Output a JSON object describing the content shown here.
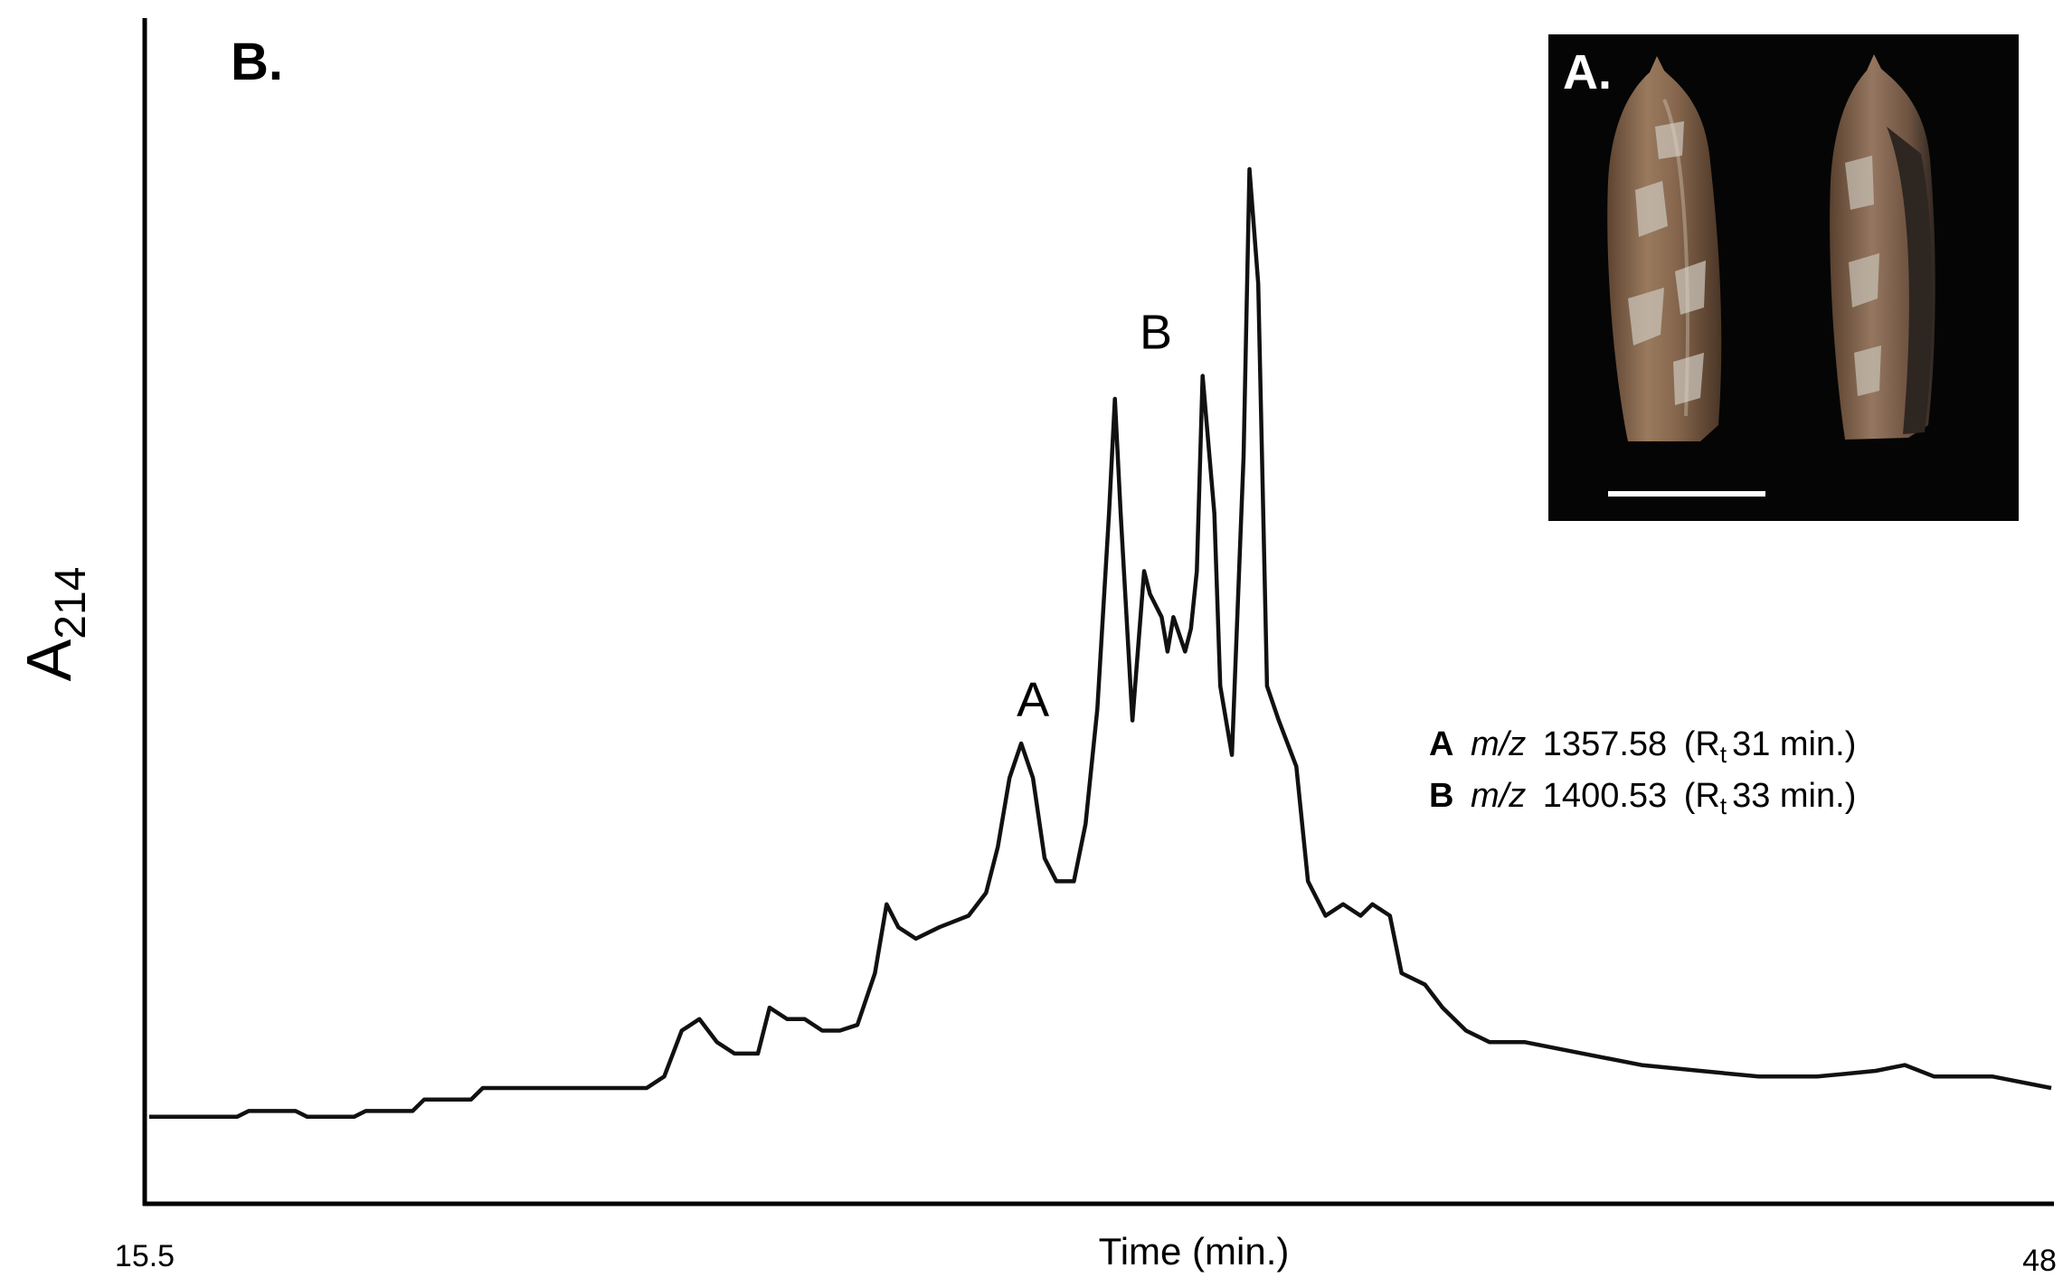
{
  "chart_data": {
    "type": "line",
    "panel_label": "B.",
    "inset_label": "A.",
    "xlabel": "Time (min.)",
    "ylabel": "A",
    "ylabel_subscript": "214",
    "xlim": [
      15.5,
      48
    ],
    "x_tick_labels": [
      "15.5",
      "48"
    ],
    "ylim": [
      0,
      100
    ],
    "grid": false,
    "peak_labels": [
      {
        "label": "A",
        "x": 30.6,
        "y": 40
      },
      {
        "label": "B",
        "x": 32.7,
        "y": 72
      }
    ],
    "annotations": [
      {
        "peak": "A",
        "mz_label": "m/z",
        "mz": "1357.58",
        "rt_prefix": "(R",
        "rt_sub": "t",
        "rt_text": "31 min.)"
      },
      {
        "peak": "B",
        "mz_label": "m/z",
        "mz": "1400.53",
        "rt_prefix": "(R",
        "rt_sub": "t",
        "rt_text": "33 min.)"
      }
    ],
    "series": [
      {
        "values": [
          [
            15.5,
            7.5
          ],
          [
            17.0,
            7.5
          ],
          [
            17.2,
            8
          ],
          [
            18.0,
            8
          ],
          [
            18.2,
            7.5
          ],
          [
            19.0,
            7.5
          ],
          [
            19.2,
            8
          ],
          [
            20.0,
            8
          ],
          [
            20.2,
            9
          ],
          [
            21.0,
            9
          ],
          [
            21.2,
            10
          ],
          [
            22.0,
            10
          ],
          [
            23.0,
            10
          ],
          [
            24.0,
            10
          ],
          [
            24.3,
            11
          ],
          [
            24.6,
            15
          ],
          [
            24.9,
            16
          ],
          [
            25.2,
            14
          ],
          [
            25.5,
            13
          ],
          [
            25.9,
            13
          ],
          [
            26.1,
            17
          ],
          [
            26.4,
            16
          ],
          [
            26.7,
            16
          ],
          [
            27.0,
            15
          ],
          [
            27.3,
            15
          ],
          [
            27.6,
            15.5
          ],
          [
            27.9,
            20
          ],
          [
            28.1,
            26
          ],
          [
            28.3,
            24
          ],
          [
            28.6,
            23
          ],
          [
            29.0,
            24
          ],
          [
            29.5,
            25
          ],
          [
            29.8,
            27
          ],
          [
            30.0,
            31
          ],
          [
            30.2,
            37
          ],
          [
            30.4,
            40
          ],
          [
            30.6,
            37
          ],
          [
            30.8,
            30
          ],
          [
            31.0,
            28
          ],
          [
            31.3,
            28
          ],
          [
            31.5,
            33
          ],
          [
            31.7,
            43
          ],
          [
            31.9,
            60
          ],
          [
            32.0,
            70
          ],
          [
            32.1,
            60
          ],
          [
            32.3,
            42
          ],
          [
            32.5,
            55
          ],
          [
            32.6,
            53
          ],
          [
            32.8,
            51
          ],
          [
            32.9,
            48
          ],
          [
            33.0,
            51
          ],
          [
            33.2,
            48
          ],
          [
            33.3,
            50
          ],
          [
            33.4,
            55
          ],
          [
            33.5,
            72
          ],
          [
            33.7,
            60
          ],
          [
            33.8,
            45
          ],
          [
            34.0,
            39
          ],
          [
            34.2,
            65
          ],
          [
            34.3,
            90
          ],
          [
            34.45,
            80
          ],
          [
            34.6,
            45
          ],
          [
            34.8,
            42
          ],
          [
            35.1,
            38
          ],
          [
            35.3,
            28
          ],
          [
            35.6,
            25
          ],
          [
            35.9,
            26
          ],
          [
            36.2,
            25
          ],
          [
            36.4,
            26
          ],
          [
            36.7,
            25
          ],
          [
            36.9,
            20
          ],
          [
            37.3,
            19
          ],
          [
            37.6,
            17
          ],
          [
            38.0,
            15
          ],
          [
            38.4,
            14
          ],
          [
            39.0,
            14
          ],
          [
            40.0,
            13
          ],
          [
            41.0,
            12
          ],
          [
            42.0,
            11.5
          ],
          [
            43.0,
            11
          ],
          [
            44.0,
            11
          ],
          [
            45.0,
            11.5
          ],
          [
            45.5,
            12
          ],
          [
            46.0,
            11
          ],
          [
            47.0,
            11
          ],
          [
            48.0,
            10
          ]
        ]
      }
    ],
    "inset": {
      "type": "photo",
      "background": "#050505",
      "shell_color": "#7a5a3f",
      "spot_color": "#c9c3b8",
      "scale_bar_color": "#ffffff"
    },
    "colors": {
      "line": "#111111",
      "axis": "#000000",
      "background": "#ffffff"
    }
  }
}
